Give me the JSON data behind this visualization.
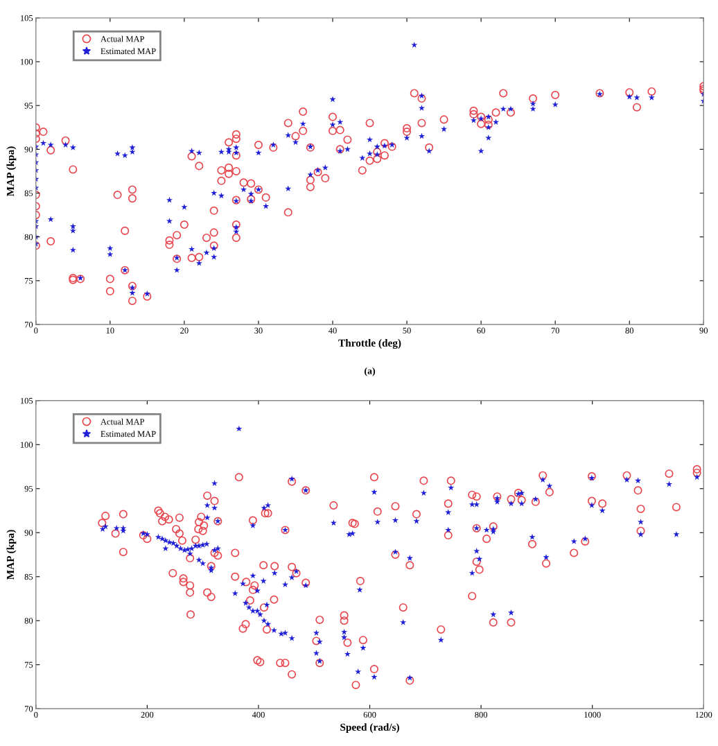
{
  "chart_data": [
    {
      "type": "scatter",
      "xlabel": "Throttle (deg)",
      "ylabel": "MAP (kpa)",
      "annotations": [
        "(a)"
      ],
      "xlim": [
        0,
        90
      ],
      "ylim": [
        70,
        105
      ],
      "xticks": [
        0,
        10,
        20,
        30,
        40,
        50,
        60,
        70,
        80,
        90
      ],
      "yticks": [
        70,
        75,
        80,
        85,
        90,
        95,
        100,
        105
      ],
      "grid": false,
      "legend": "top left",
      "series": [
        {
          "name": "Actual MAP",
          "color": "#e8474f",
          "marker": "circle",
          "x": [
            0,
            0,
            0,
            0,
            0,
            0,
            0,
            1,
            2,
            2,
            4,
            5,
            5,
            5,
            6,
            10,
            10,
            11,
            12,
            12,
            13,
            13,
            13,
            13,
            15,
            18,
            18,
            19,
            19,
            20,
            21,
            21,
            22,
            22,
            23,
            24,
            24,
            24,
            25,
            25,
            26,
            26,
            26,
            27,
            27,
            27,
            27,
            27,
            27,
            27,
            28,
            29,
            29,
            30,
            30,
            31,
            32,
            34,
            34,
            35,
            36,
            36,
            37,
            37,
            37,
            38,
            39,
            40,
            40,
            41,
            41,
            42,
            44,
            45,
            45,
            46,
            46,
            47,
            47,
            48,
            50,
            50,
            51,
            52,
            52,
            53,
            55,
            59,
            59,
            60,
            60,
            61,
            61,
            62,
            63,
            64,
            67,
            70,
            76,
            80,
            81,
            83,
            90,
            90,
            90
          ],
          "values": [
            92.5,
            91.8,
            91.2,
            84.8,
            83.5,
            82.5,
            79,
            92,
            89.9,
            79.5,
            91,
            87.7,
            75.3,
            75.1,
            75.2,
            75.2,
            73.8,
            84.8,
            80.7,
            76.2,
            85.4,
            84.4,
            74.4,
            72.7,
            73.2,
            79.6,
            79.1,
            80.2,
            77.5,
            81.4,
            89.2,
            77.6,
            88.1,
            77.7,
            79.9,
            83,
            80.5,
            79,
            87.6,
            86.4,
            90.8,
            87.2,
            87.9,
            91.7,
            91.2,
            89.3,
            87.5,
            84.2,
            81.4,
            79.9,
            86.2,
            86.1,
            84.3,
            90.5,
            85.4,
            84.5,
            90.2,
            93,
            82.8,
            91.5,
            94.3,
            92.1,
            90.2,
            86.5,
            85.7,
            87.4,
            86.7,
            93.7,
            92.1,
            92.2,
            90,
            91.1,
            87.6,
            93,
            88.7,
            89.7,
            88.9,
            90.7,
            89.3,
            90.3,
            92.4,
            92,
            96.4,
            95.8,
            93,
            90.2,
            93.4,
            94.4,
            94,
            93.7,
            92.9,
            93.4,
            92.8,
            94.2,
            96.4,
            94.2,
            95.8,
            96.2,
            96.4,
            96.5,
            94.8,
            96.6,
            97.2,
            96.9,
            96.7
          ]
        },
        {
          "name": "Estimated MAP",
          "color": "#1f1fd8",
          "marker": "star",
          "x": [
            0,
            0,
            0,
            0,
            0,
            0,
            0,
            0,
            0,
            0,
            1,
            2,
            2,
            4,
            5,
            5,
            5,
            5,
            6,
            10,
            10,
            11,
            12,
            12,
            13,
            13,
            13,
            13,
            15,
            18,
            18,
            19,
            19,
            20,
            21,
            21,
            22,
            22,
            23,
            24,
            24,
            24,
            25,
            25,
            26,
            26,
            27,
            27,
            27,
            27,
            27,
            28,
            29,
            29,
            30,
            30,
            31,
            32,
            34,
            34,
            35,
            36,
            37,
            37,
            38,
            39,
            40,
            40,
            41,
            41,
            42,
            44,
            45,
            45,
            46,
            46,
            47,
            48,
            50,
            51,
            52,
            52,
            52,
            53,
            55,
            59,
            60,
            60,
            61,
            61,
            61,
            62,
            63,
            64,
            67,
            67,
            70,
            76,
            80,
            81,
            83,
            90,
            90
          ],
          "values": [
            90.3,
            89.4,
            88.5,
            87.6,
            86.6,
            85.6,
            81.8,
            81.2,
            80,
            79.2,
            90.7,
            90.5,
            82,
            90.5,
            90.2,
            81.2,
            80.7,
            78.5,
            75.3,
            78.7,
            78,
            89.5,
            89.3,
            76.2,
            90.2,
            89.7,
            74.2,
            73.6,
            73.5,
            84.2,
            81.8,
            77.6,
            76.2,
            83.4,
            89.8,
            78.6,
            89.6,
            77,
            78.2,
            85,
            78.7,
            77.7,
            89.7,
            84.7,
            90,
            89.7,
            90.2,
            89.6,
            84.1,
            81.1,
            80.6,
            85.4,
            84.9,
            84.1,
            89.6,
            85.4,
            83.5,
            90.5,
            91.6,
            85.5,
            90.8,
            92.9,
            90.3,
            87.1,
            87.6,
            87.9,
            95.7,
            92.8,
            93.1,
            89.8,
            90,
            89,
            91.1,
            89.5,
            90.3,
            89.4,
            90.4,
            90.5,
            91.3,
            101.9,
            96.1,
            94.7,
            91.5,
            89.8,
            92.3,
            93.3,
            93.5,
            89.8,
            93.7,
            92.5,
            91.3,
            93.1,
            94.6,
            94.6,
            95.2,
            94.6,
            95.1,
            96.3,
            96,
            95.9,
            95.9,
            96.3,
            95.5
          ]
        }
      ]
    },
    {
      "type": "scatter",
      "xlabel": "Speed (rad/s)",
      "ylabel": "MAP (kpa)",
      "xlim": [
        0,
        1200
      ],
      "ylim": [
        70,
        105
      ],
      "xticks": [
        0,
        200,
        400,
        600,
        800,
        1000,
        1200
      ],
      "yticks": [
        70,
        75,
        80,
        85,
        90,
        95,
        100,
        105
      ],
      "grid": false,
      "legend": "top left",
      "series": [
        {
          "name": "Actual MAP",
          "color": "#e8474f",
          "marker": "circle",
          "x": [
            119,
            125,
            143,
            157,
            157,
            193,
            200,
            220,
            223,
            227,
            232,
            239,
            246,
            252,
            258,
            258,
            263,
            265,
            265,
            277,
            277,
            278,
            277,
            287,
            292,
            293,
            297,
            300,
            302,
            308,
            308,
            315,
            315,
            321,
            321,
            327,
            327,
            358,
            358,
            365,
            372,
            377,
            378,
            385,
            390,
            393,
            390,
            398,
            403,
            409,
            412,
            417,
            410,
            415,
            428,
            429,
            439,
            448,
            448,
            460,
            460,
            460,
            468,
            485,
            485,
            504,
            510,
            510,
            535,
            554,
            554,
            560,
            569,
            573,
            575,
            583,
            588,
            608,
            608,
            614,
            646,
            646,
            660,
            672,
            672,
            684,
            697,
            728,
            741,
            741,
            746,
            784,
            784,
            792,
            792,
            792,
            797,
            810,
            822,
            822,
            829,
            854,
            854,
            867,
            873,
            892,
            898,
            911,
            917,
            923,
            967,
            987,
            999,
            999,
            1018,
            1062,
            1082,
            1087,
            1087,
            1138,
            1151,
            1188,
            1188
          ],
          "values": [
            91.1,
            91.9,
            89.9,
            92.1,
            87.8,
            89.7,
            89.3,
            92.5,
            92.2,
            91.3,
            91.8,
            91.5,
            85.4,
            90.4,
            91.7,
            89.9,
            89.1,
            84.8,
            84.4,
            87.1,
            84,
            80.7,
            83.2,
            89.2,
            90.4,
            91.2,
            91.8,
            90.2,
            90.8,
            94.2,
            83.2,
            86.2,
            82.7,
            93.6,
            87.7,
            87.4,
            91.3,
            87.7,
            85,
            96.3,
            79.1,
            79.6,
            84.4,
            82.3,
            83.5,
            84,
            91.4,
            75.5,
            75.3,
            86.3,
            92.2,
            92.2,
            81.5,
            79,
            82.4,
            86.2,
            75.2,
            75.2,
            90.3,
            86.1,
            95.8,
            73.9,
            85.4,
            94.8,
            84.3,
            77.7,
            80.1,
            75.2,
            93.1,
            80.6,
            80,
            77.5,
            91.1,
            91,
            72.7,
            84.5,
            77.8,
            96.3,
            74.5,
            92.4,
            93,
            87.5,
            81.5,
            86.3,
            73.2,
            92.1,
            95.9,
            79,
            93.3,
            89.7,
            95.9,
            94.3,
            82.8,
            94.1,
            90.5,
            86.7,
            85.8,
            89.3,
            90.7,
            79.8,
            94.1,
            93.8,
            79.8,
            94.5,
            93.7,
            88.7,
            93.5,
            96.5,
            86.5,
            94.6,
            87.7,
            89,
            96.4,
            93.6,
            93.3,
            96.5,
            94.8,
            92.7,
            90.2,
            96.7,
            92.9,
            97.2,
            96.8
          ]
        },
        {
          "name": "Estimated MAP",
          "color": "#1f1fd8",
          "marker": "star",
          "x": [
            120,
            125,
            145,
            157,
            157,
            193,
            200,
            220,
            227,
            233,
            240,
            247,
            253,
            260,
            267,
            273,
            280,
            287,
            293,
            300,
            307,
            233,
            277,
            293,
            300,
            315,
            315,
            308,
            308,
            321,
            321,
            327,
            321,
            327,
            365,
            358,
            372,
            390,
            377,
            383,
            390,
            398,
            403,
            410,
            417,
            415,
            398,
            428,
            441,
            448,
            460,
            410,
            417,
            390,
            409,
            429,
            448,
            448,
            460,
            460,
            468,
            485,
            485,
            504,
            504,
            510,
            510,
            535,
            554,
            554,
            560,
            563,
            569,
            579,
            582,
            588,
            608,
            608,
            614,
            646,
            646,
            660,
            672,
            672,
            684,
            697,
            728,
            741,
            741,
            746,
            784,
            792,
            784,
            792,
            792,
            797,
            810,
            822,
            822,
            822,
            829,
            829,
            854,
            854,
            867,
            873,
            873,
            892,
            898,
            911,
            917,
            923,
            967,
            987,
            999,
            999,
            1018,
            1062,
            1082,
            1087,
            1087,
            1138,
            1151,
            1188
          ],
          "values": [
            90.4,
            90.7,
            90.5,
            90.5,
            90.2,
            89.9,
            89.8,
            89.5,
            89.3,
            89.1,
            88.9,
            88.8,
            88.5,
            88.2,
            88,
            88.1,
            88.2,
            88.5,
            88.5,
            88.6,
            88.7,
            88.2,
            87.6,
            86.9,
            86.5,
            86,
            85.7,
            93.1,
            91.7,
            95.6,
            92.8,
            91.3,
            88,
            88.2,
            101.8,
            83.1,
            84.2,
            85.1,
            82,
            81.5,
            81.1,
            81.1,
            80.7,
            80,
            79.6,
            81.8,
            83.4,
            78.9,
            78.5,
            78.6,
            78,
            92.8,
            93.1,
            90.8,
            84.5,
            85.4,
            90.3,
            84.1,
            96.1,
            84.9,
            85.6,
            94.8,
            84,
            78.6,
            76.3,
            77.6,
            75.4,
            91.1,
            78.7,
            78.1,
            76.2,
            89.8,
            89.9,
            74.2,
            83.5,
            76.9,
            94.6,
            73.6,
            91.2,
            91.4,
            87.8,
            79.8,
            87.1,
            73.5,
            91.3,
            94.5,
            77.8,
            92.3,
            90.3,
            95.1,
            93.2,
            93.2,
            85.4,
            90.5,
            87.9,
            87,
            90.3,
            90.4,
            90.1,
            80.7,
            93.9,
            93.5,
            93.3,
            80.9,
            94.4,
            94.5,
            93.3,
            89.5,
            93.8,
            96,
            87.2,
            95.3,
            89,
            89.3,
            96.2,
            93.1,
            92.5,
            96,
            95.9,
            91.2,
            89.8,
            95.5,
            89.8,
            96.3
          ]
        }
      ]
    }
  ]
}
